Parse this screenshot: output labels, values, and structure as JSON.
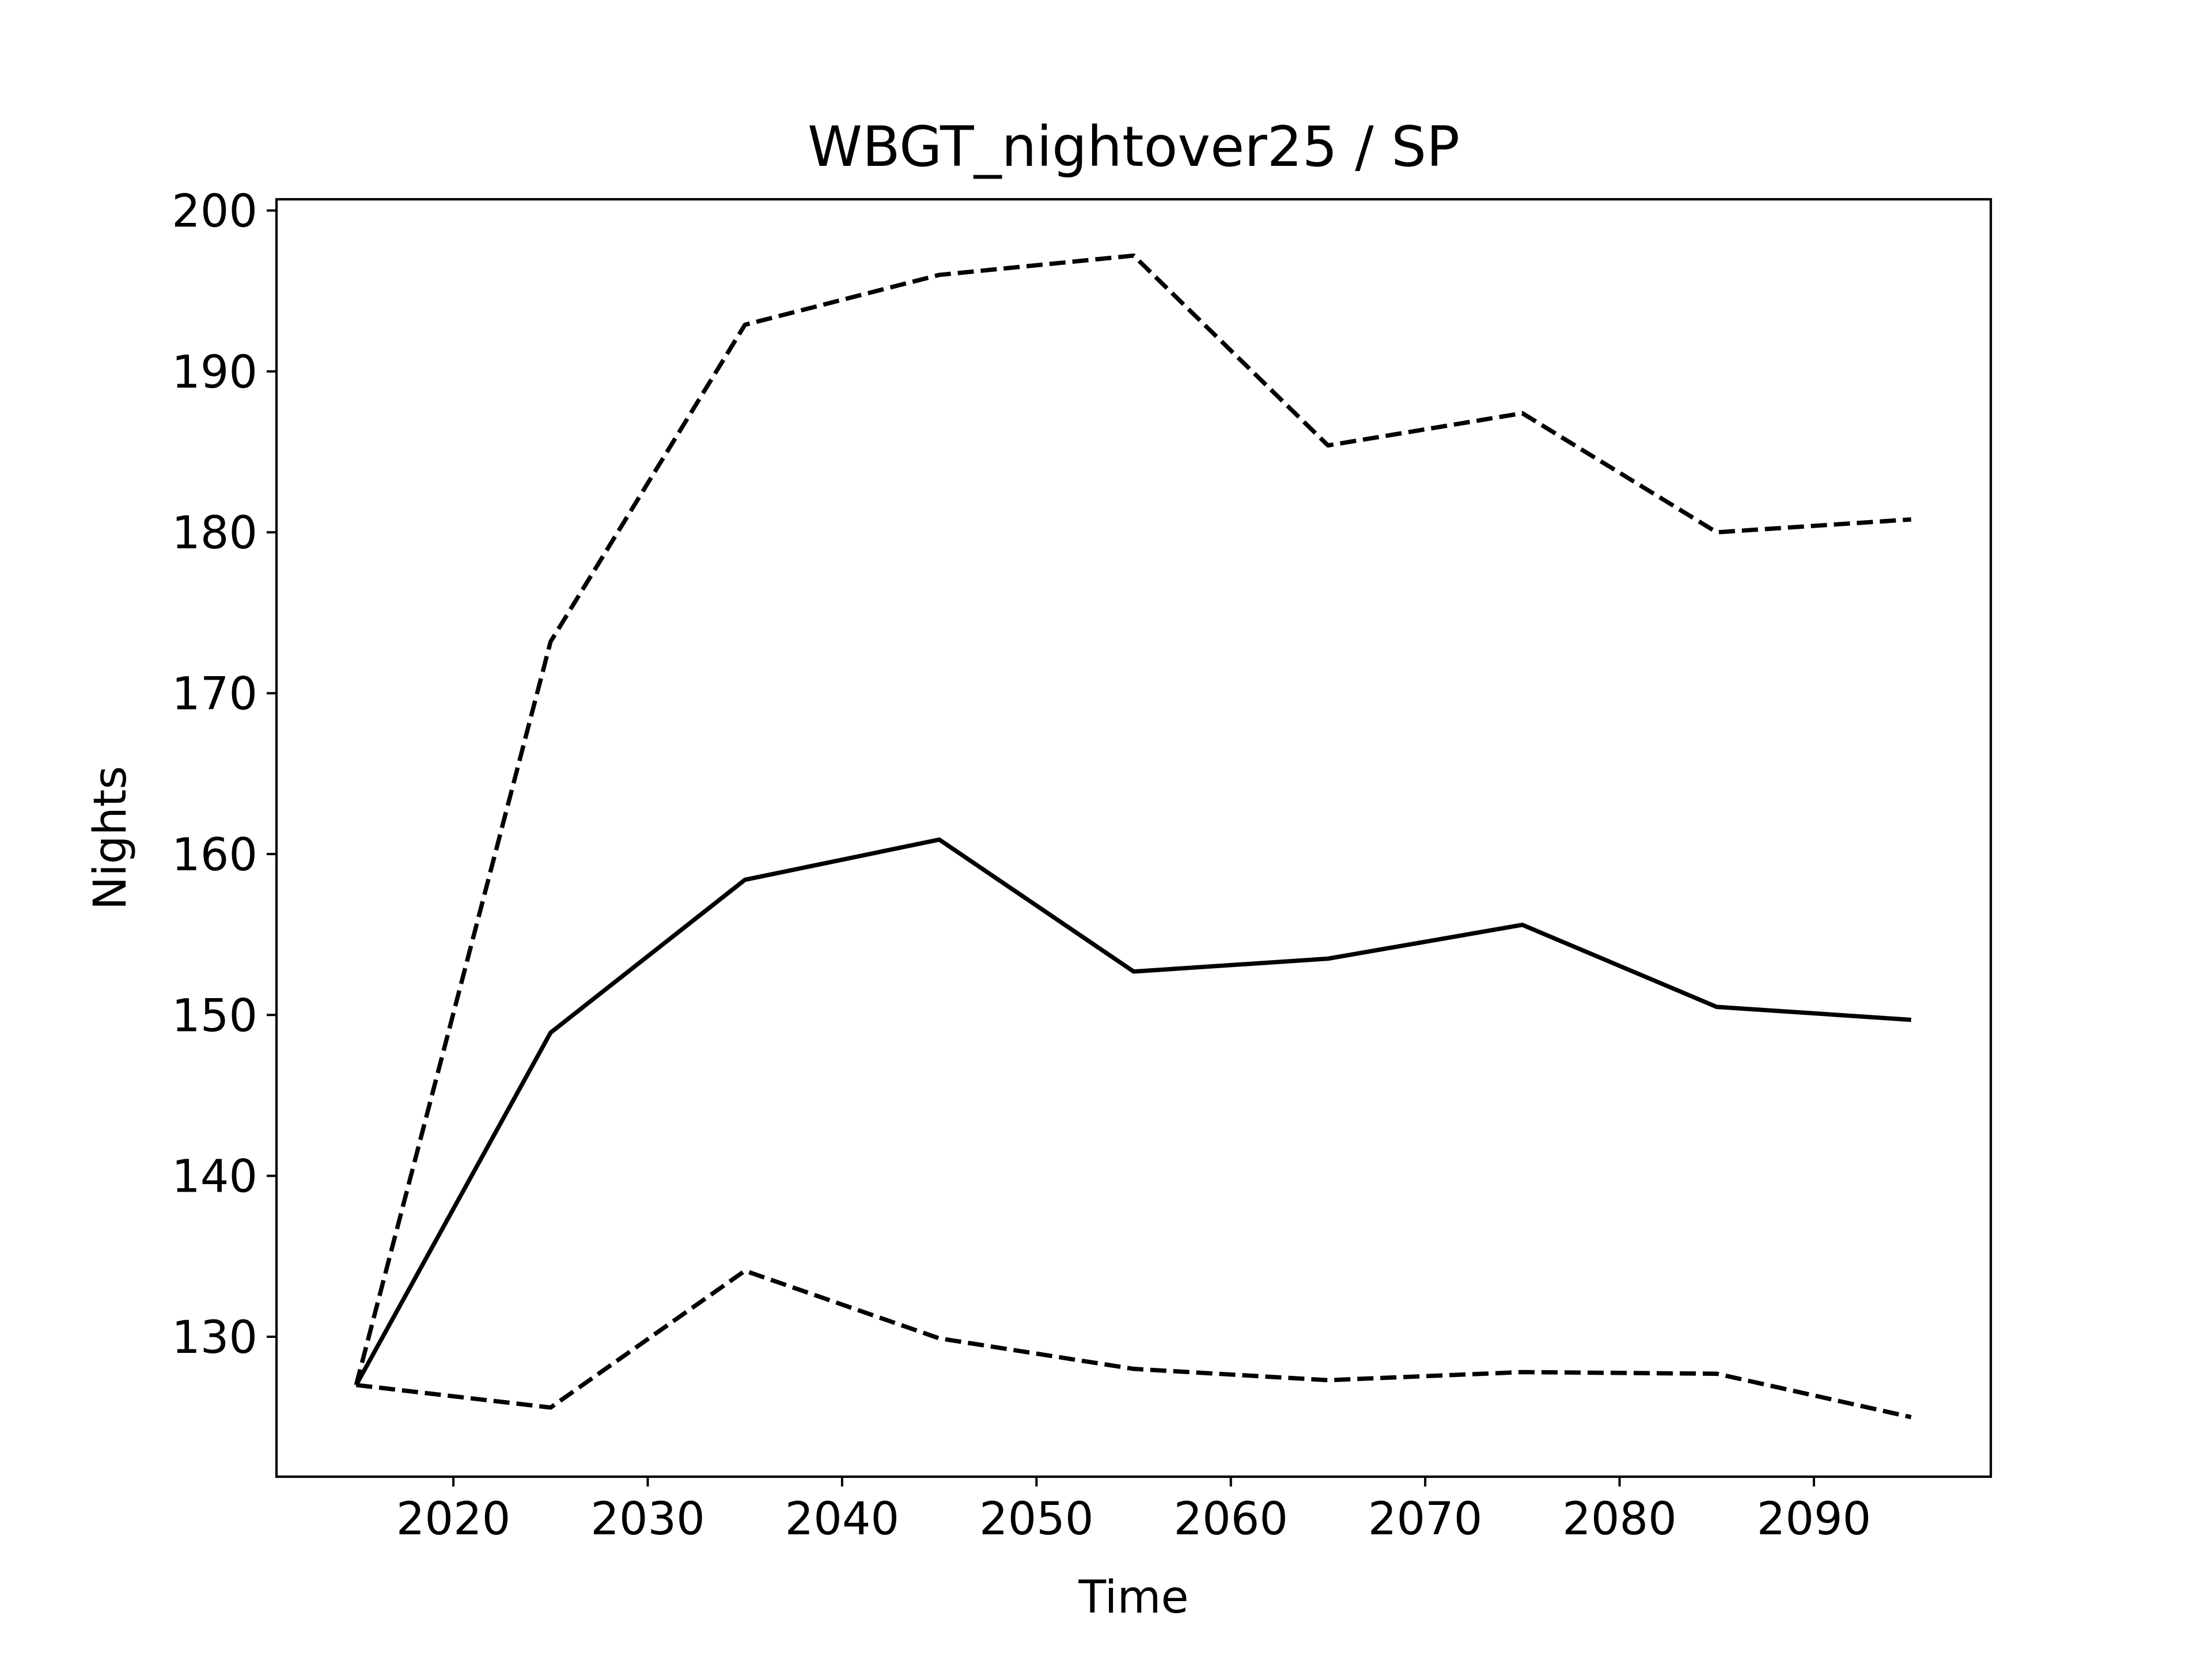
{
  "chart_data": {
    "type": "line",
    "title": "WBGT_nightover25 / SP",
    "xlabel": "Time",
    "ylabel": "Nights",
    "xlim": [
      2010.9,
      2099.1
    ],
    "ylim": [
      121.3,
      200.7
    ],
    "x_ticks": [
      2020,
      2030,
      2040,
      2050,
      2060,
      2070,
      2080,
      2090
    ],
    "y_ticks": [
      130,
      140,
      150,
      160,
      170,
      180,
      190,
      200
    ],
    "grid": false,
    "x": [
      2015,
      2025,
      2035,
      2045,
      2055,
      2065,
      2075,
      2085,
      2095
    ],
    "series": [
      {
        "style": "dashed",
        "color": "#000000",
        "values": [
          127.0,
          173.2,
          192.9,
          196.0,
          197.2,
          185.4,
          187.4,
          180.0,
          180.8
        ]
      },
      {
        "style": "solid",
        "color": "#000000",
        "values": [
          127.0,
          148.9,
          158.4,
          160.9,
          152.7,
          153.5,
          155.6,
          150.5,
          149.7
        ]
      },
      {
        "style": "dashed",
        "color": "#000000",
        "values": [
          127.0,
          125.6,
          134.1,
          129.9,
          128.0,
          127.3,
          127.8,
          127.7,
          125.0
        ]
      }
    ]
  }
}
